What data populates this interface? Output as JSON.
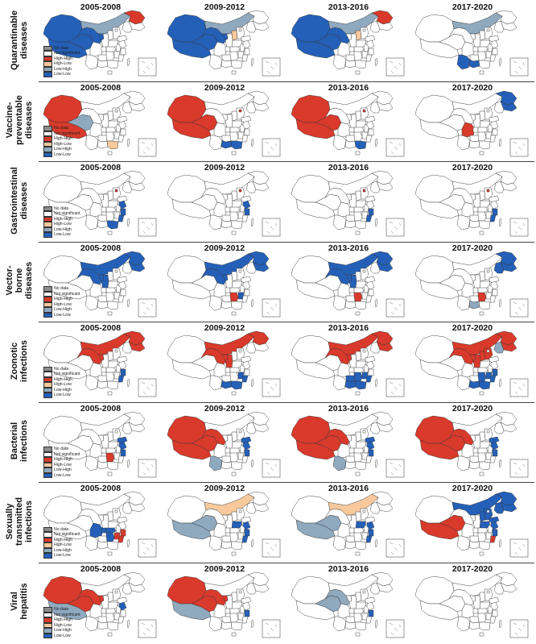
{
  "periods": [
    "2005-2008",
    "2009-2012",
    "2013-2016",
    "2017-2020"
  ],
  "colors": {
    "no_data": "#8c8c8c",
    "not_significant": "#ffffff",
    "high_high": "#d93a2b",
    "high_low": "#f8c99c",
    "low_high": "#8fa9bf",
    "low_low": "#2460b8",
    "border": "#333333"
  },
  "legend": [
    {
      "key": "no_data",
      "label": "No data"
    },
    {
      "key": "not_significant",
      "label": "Not significant"
    },
    {
      "key": "high_high",
      "label": "High-High"
    },
    {
      "key": "high_low",
      "label": "High-Low"
    },
    {
      "key": "low_high",
      "label": "Low-High"
    },
    {
      "key": "low_low",
      "label": "Low-Low"
    }
  ],
  "rows": [
    {
      "label": "Quarantinable diseases",
      "panels": [
        {
          "XJ": "low_low",
          "XZ": "low_low",
          "QH": "low_low",
          "GS": "low_low",
          "NM": "low_high",
          "HLJ": "high_high",
          "NX": "low_low"
        },
        {
          "XJ": "low_low",
          "XZ": "low_low",
          "QH": "low_low",
          "GS": "low_low",
          "NM": "low_high",
          "SX": "high_low",
          "NX": "low_low"
        },
        {
          "XJ": "low_low",
          "XZ": "low_low",
          "QH": "low_low",
          "GS": "low_low",
          "NM": "low_high",
          "HLJ": "high_high",
          "SX": "high_low"
        },
        {
          "NM": "low_high",
          "YN": "low_low",
          "GX": "low_low"
        }
      ]
    },
    {
      "label": "Vaccine-preventable diseases",
      "panels": [
        {
          "XJ": "high_high",
          "XZ": "high_high",
          "QH": "low_high",
          "GD": "high_low"
        },
        {
          "XJ": "high_high",
          "XZ": "high_high",
          "QH": "high_high",
          "BJ": "high_high",
          "GD": "low_low",
          "GX": "low_low"
        },
        {
          "XJ": "high_high",
          "XZ": "high_high",
          "QH": "high_high",
          "BJ": "high_high",
          "GD": "low_low"
        },
        {
          "HLJ": "low_low",
          "JL": "low_low",
          "SC": "high_high"
        }
      ]
    },
    {
      "label": "Gastrointestinal diseases",
      "panels": [
        {
          "BJ": "high_high",
          "JS": "low_low",
          "ZJ": "low_low",
          "FJ": "low_low",
          "GD": "low_low"
        },
        {
          "BJ": "high_high",
          "JS": "low_low",
          "ZJ": "low_low"
        },
        {
          "BJ": "high_high",
          "ZJ": "low_low",
          "FJ": "low_low"
        },
        {
          "BJ": "high_high",
          "ZJ": "low_low",
          "FJ": "low_low"
        }
      ]
    },
    {
      "label": "Vector-borne diseases",
      "panels": [
        {
          "NM": "low_low",
          "HLJ": "low_low",
          "JL": "low_low",
          "GS": "low_low",
          "NX": "low_low",
          "SN": "low_low"
        },
        {
          "NM": "low_low",
          "HLJ": "low_low",
          "JL": "low_low",
          "GS": "low_low",
          "NX": "low_low",
          "HUN": "high_high",
          "JX": "low_low"
        },
        {
          "NM": "low_low",
          "HLJ": "low_low",
          "JL": "low_low",
          "GS": "low_low",
          "NX": "low_low",
          "SN": "low_low",
          "HUN": "high_high"
        },
        {
          "HLJ": "low_low",
          "JL": "low_low",
          "LN": "low_low",
          "HUN": "high_high",
          "GX": "low_high"
        }
      ]
    },
    {
      "label": "Zoonotic infections",
      "panels": [
        {
          "NM": "high_high",
          "HLJ": "high_high",
          "JL": "high_high",
          "NX": "high_high",
          "GS": "high_high",
          "ZJ": "low_low",
          "FJ": "low_low"
        },
        {
          "NM": "high_high",
          "HLJ": "high_high",
          "NX": "high_high",
          "GS": "high_high",
          "SN": "high_high",
          "GX": "low_low",
          "GD": "low_low",
          "FJ": "low_low",
          "JX": "low_low"
        },
        {
          "NM": "high_high",
          "HLJ": "high_high",
          "JL": "high_high",
          "GS": "high_high",
          "NX": "high_high",
          "GX": "low_low",
          "GD": "low_low",
          "FJ": "low_low",
          "HUN": "low_low",
          "JX": "low_low",
          "GZ": "low_low"
        },
        {
          "NM": "high_high",
          "HLJ": "high_high",
          "JL": "high_high",
          "LN": "low_high",
          "GS": "high_high",
          "NX": "high_high",
          "SN": "high_high",
          "HEB": "high_high",
          "SX": "high_high",
          "GX": "low_low",
          "GD": "low_low",
          "FJ": "low_low",
          "JX": "low_low",
          "HUN": "low_low",
          "ZJ": "low_low"
        }
      ]
    },
    {
      "label": "Bacterial infections",
      "panels": [
        {
          "HUN": "high_high",
          "JS": "low_low",
          "ZJ": "low_low",
          "SD": "low_low"
        },
        {
          "XJ": "high_high",
          "XZ": "high_high",
          "QH": "high_high",
          "GS": "high_high",
          "YN": "low_high",
          "SD": "low_low",
          "JS": "low_low",
          "ZJ": "low_low"
        },
        {
          "XJ": "high_high",
          "XZ": "high_high",
          "QH": "high_high",
          "GS": "high_high",
          "YN": "low_high",
          "SD": "low_low",
          "JS": "low_low",
          "ZJ": "low_low"
        },
        {
          "XJ": "high_high",
          "XZ": "high_high",
          "QH": "high_high",
          "GS": "high_high",
          "SD": "low_low",
          "JS": "low_low",
          "ZJ": "low_low"
        }
      ]
    },
    {
      "label": "Sexually transmitted infections",
      "panels": [
        {
          "SC": "low_low",
          "HUB": "low_low",
          "HUN": "low_low",
          "CQ": "low_low",
          "JX": "high_high",
          "ZJ": "high_high",
          "FJ": "high_high"
        },
        {
          "NM": "high_low",
          "XZ": "low_high",
          "QH": "low_high",
          "HEN": "low_low",
          "ZJ": "low_low",
          "FJ": "low_low",
          "JS": "low_low"
        },
        {
          "NM": "high_low",
          "XZ": "low_high",
          "QH": "low_high",
          "HEN": "low_low",
          "ZJ": "low_low",
          "FJ": "low_low",
          "JS": "low_low"
        },
        {
          "NM": "low_low",
          "HLJ": "low_low",
          "JL": "low_low",
          "LN": "low_low",
          "HEB": "low_low",
          "SX": "low_low",
          "SD": "low_low",
          "HEN": "low_low",
          "JS": "low_low",
          "XZ": "high_high",
          "QH": "high_high",
          "FJ": "high_high",
          "ZJ": "low_low"
        }
      ]
    },
    {
      "label": "Viral hepatitis",
      "panels": [
        {
          "XJ": "high_high",
          "GS": "high_high",
          "QH": "high_high",
          "XZ": "low_high",
          "NX": "high_high",
          "JS": "low_low"
        },
        {
          "XJ": "high_high",
          "GS": "high_high",
          "QH": "high_high",
          "XZ": "low_high",
          "NX": "high_high",
          "ZJ": "low_low"
        },
        {
          "QH": "low_high",
          "GS": "low_high",
          "ZJ": "low_low"
        },
        {}
      ]
    }
  ]
}
